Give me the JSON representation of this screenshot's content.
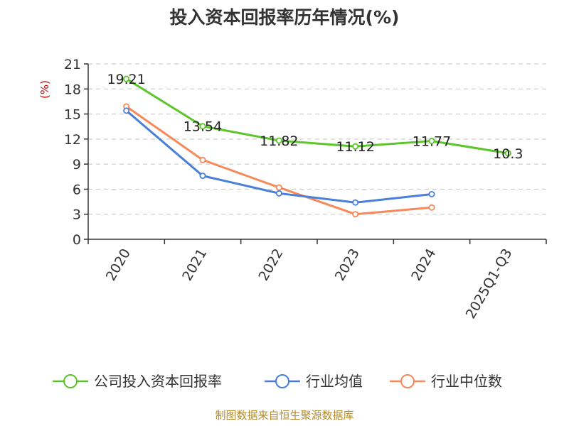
{
  "chart_data": {
    "type": "line",
    "title": "投入资本回报率历年情况(%)",
    "ylabel": "(%)",
    "xlabel": "",
    "ylim": [
      0,
      21
    ],
    "yticks": [
      0,
      3,
      6,
      9,
      12,
      15,
      18,
      21
    ],
    "categories": [
      "2020",
      "2021",
      "2022",
      "2023",
      "2024",
      "2025Q1-Q3"
    ],
    "grid": true,
    "legend_position": "bottom",
    "series": [
      {
        "name": "公司投入资本回报率",
        "color": "#5bc52a",
        "values": [
          19.21,
          13.54,
          11.82,
          11.12,
          11.77,
          10.3
        ],
        "labels": [
          "19.21",
          "13.54",
          "11.82",
          "11.12",
          "11.77",
          "10.3"
        ],
        "show_labels": true
      },
      {
        "name": "行业均值",
        "color": "#4a7fd9",
        "values": [
          15.4,
          7.6,
          5.5,
          4.4,
          5.4,
          null
        ],
        "show_labels": false
      },
      {
        "name": "行业中位数",
        "color": "#f5895a",
        "values": [
          15.9,
          9.5,
          6.2,
          3.0,
          3.8,
          null
        ],
        "show_labels": false
      }
    ]
  },
  "footer": {
    "source": "制图数据来自恒生聚源数据库",
    "source_color": "#b48a2d"
  }
}
